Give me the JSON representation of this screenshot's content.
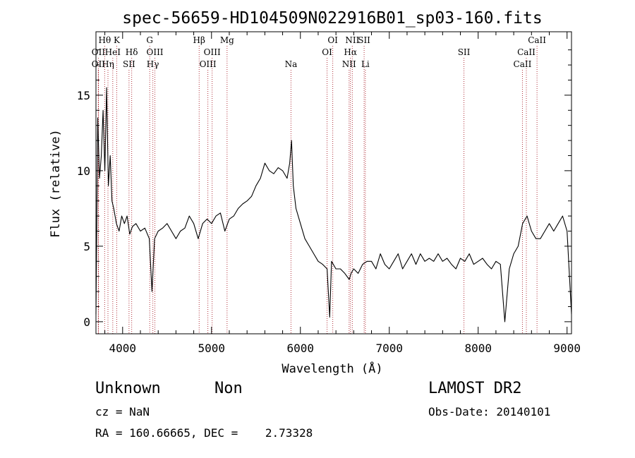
{
  "chart_data": {
    "type": "line",
    "title": "spec-56659-HD104509N022916B01_sp03-160.fits",
    "xlabel": "Wavelength (Å)",
    "ylabel": "Flux (relative)",
    "xlim": [
      3700,
      9050
    ],
    "ylim": [
      -0.8,
      19.2
    ],
    "xticks": [
      4000,
      5000,
      6000,
      7000,
      8000,
      9000
    ],
    "yticks": [
      0,
      5,
      10,
      15
    ],
    "series": [
      {
        "x": [
          3700,
          3720,
          3740,
          3760,
          3780,
          3800,
          3820,
          3840,
          3860,
          3880,
          3900,
          3930,
          3960,
          3990,
          4020,
          4050,
          4080,
          4110,
          4150,
          4200,
          4250,
          4300,
          4330,
          4360,
          4400,
          4450,
          4500,
          4550,
          4600,
          4650,
          4700,
          4750,
          4800,
          4850,
          4900,
          4950,
          5000,
          5050,
          5100,
          5150,
          5200,
          5250,
          5300,
          5350,
          5400,
          5450,
          5500,
          5550,
          5600,
          5650,
          5700,
          5750,
          5800,
          5850,
          5880,
          5900,
          5920,
          5950,
          6000,
          6050,
          6100,
          6150,
          6200,
          6250,
          6300,
          6330,
          6350,
          6400,
          6450,
          6500,
          6550,
          6570,
          6600,
          6650,
          6700,
          6750,
          6800,
          6850,
          6900,
          6950,
          7000,
          7050,
          7100,
          7150,
          7200,
          7250,
          7300,
          7350,
          7400,
          7450,
          7500,
          7550,
          7600,
          7650,
          7700,
          7750,
          7800,
          7850,
          7900,
          7950,
          8000,
          8050,
          8100,
          8150,
          8200,
          8250,
          8300,
          8350,
          8400,
          8450,
          8500,
          8550,
          8600,
          8650,
          8700,
          8750,
          8800,
          8850,
          8900,
          8950,
          9000,
          9050
        ],
        "y": [
          0.5,
          13.5,
          9.5,
          11.0,
          14.0,
          10.0,
          15.5,
          9.0,
          11.0,
          8.0,
          7.5,
          6.5,
          6.0,
          7.0,
          6.5,
          7.0,
          5.8,
          6.3,
          6.5,
          6.0,
          6.2,
          5.5,
          2.0,
          5.5,
          6.0,
          6.2,
          6.5,
          6.0,
          5.5,
          6.0,
          6.2,
          7.0,
          6.5,
          5.5,
          6.5,
          6.8,
          6.5,
          7.0,
          7.2,
          6.0,
          6.8,
          7.0,
          7.5,
          7.8,
          8.0,
          8.3,
          9.0,
          9.5,
          10.5,
          10.0,
          9.8,
          10.2,
          10.0,
          9.5,
          10.5,
          12.0,
          9.0,
          7.5,
          6.5,
          5.5,
          5.0,
          4.5,
          4.0,
          3.8,
          3.5,
          0.3,
          4.0,
          3.5,
          3.5,
          3.2,
          2.8,
          3.2,
          3.5,
          3.2,
          3.8,
          4.0,
          4.0,
          3.5,
          4.5,
          3.8,
          3.5,
          4.0,
          4.5,
          3.5,
          4.0,
          4.5,
          3.8,
          4.5,
          4.0,
          4.2,
          4.0,
          4.5,
          4.0,
          4.2,
          3.8,
          3.5,
          4.2,
          4.0,
          4.5,
          3.8,
          4.0,
          4.2,
          3.8,
          3.5,
          4.0,
          3.8,
          0.0,
          3.5,
          4.5,
          5.0,
          6.5,
          7.0,
          6.0,
          5.5,
          5.5,
          6.0,
          6.5,
          6.0,
          6.5,
          7.0,
          6.0,
          0.5
        ]
      }
    ],
    "line_markers": [
      {
        "name": "Hθ",
        "wave": 3798,
        "row": 1,
        "label_dx": 0
      },
      {
        "name": "OII",
        "wave": 3727,
        "row": 2,
        "label_dx": 0
      },
      {
        "name": "OII",
        "wave": 3727,
        "row": 3,
        "label_dx": 0
      },
      {
        "name": "Hη",
        "wave": 3835,
        "row": 3,
        "label_dx": 0
      },
      {
        "name": "K",
        "wave": 3934,
        "row": 1,
        "label_dx": 0
      },
      {
        "name": "HeI",
        "wave": 3889,
        "row": 2,
        "label_dx": 0
      },
      {
        "name": "Hδ",
        "wave": 4102,
        "row": 2,
        "label_dx": 0
      },
      {
        "name": "SII",
        "wave": 4072,
        "row": 3,
        "label_dx": 0
      },
      {
        "name": "G",
        "wave": 4305,
        "row": 1,
        "label_dx": 0
      },
      {
        "name": "OIII",
        "wave": 4363,
        "row": 2,
        "label_dx": 0
      },
      {
        "name": "Hγ",
        "wave": 4340,
        "row": 3,
        "label_dx": 0
      },
      {
        "name": "Hβ",
        "wave": 4861,
        "row": 1,
        "label_dx": 0
      },
      {
        "name": "OIII",
        "wave": 5007,
        "row": 2,
        "label_dx": 0
      },
      {
        "name": "OIII",
        "wave": 4959,
        "row": 3,
        "label_dx": 0
      },
      {
        "name": "Mg",
        "wave": 5175,
        "row": 1,
        "label_dx": 0
      },
      {
        "name": "Na",
        "wave": 5894,
        "row": 3,
        "label_dx": 0
      },
      {
        "name": "OI",
        "wave": 6364,
        "row": 1,
        "label_dx": 0
      },
      {
        "name": "OI",
        "wave": 6300,
        "row": 2,
        "label_dx": 0
      },
      {
        "name": "NII",
        "wave": 6584,
        "row": 1,
        "label_dx": 0
      },
      {
        "name": "SII",
        "wave": 6717,
        "row": 1,
        "label_dx": 0
      },
      {
        "name": "Hα",
        "wave": 6563,
        "row": 2,
        "label_dx": 0
      },
      {
        "name": "NII",
        "wave": 6548,
        "row": 3,
        "label_dx": 0
      },
      {
        "name": "Li",
        "wave": 6731,
        "row": 3,
        "label_dx": 0
      },
      {
        "name": "SII",
        "wave": 7840,
        "row": 2,
        "label_dx": 0
      },
      {
        "name": "CaII",
        "wave": 8662,
        "row": 1,
        "label_dx": 0
      },
      {
        "name": "CaII",
        "wave": 8542,
        "row": 2,
        "label_dx": 0
      },
      {
        "name": "CaII",
        "wave": 8498,
        "row": 3,
        "label_dx": 0
      }
    ],
    "line_marker_color": "#b0303a",
    "grid": false
  },
  "info": {
    "class": "Unknown",
    "subclass": "Non",
    "survey": "LAMOST DR2",
    "redshift": "cz = NaN",
    "obs_date": "Obs-Date: 20140101",
    "coords": "RA = 160.66665, DEC =    2.73328"
  }
}
